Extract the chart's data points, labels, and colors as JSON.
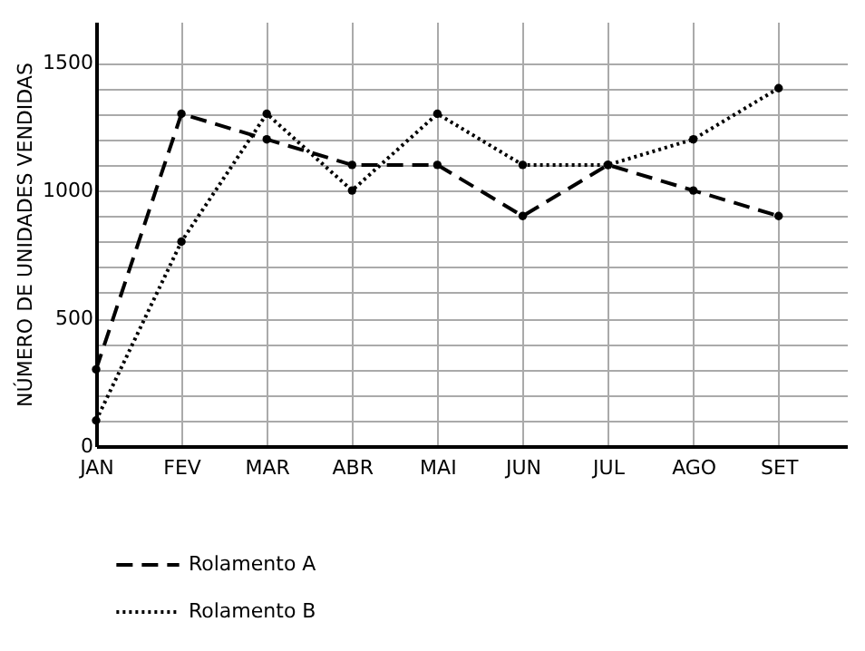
{
  "chart_data": {
    "type": "line",
    "ylabel": "NÚMERO DE UNIDADES VENDIDAS",
    "categories": [
      "JAN",
      "FEV",
      "MAR",
      "ABR",
      "MAI",
      "JUN",
      "JUL",
      "AGO",
      "SET"
    ],
    "series": [
      {
        "name": "Rolamento A",
        "color": "#000000",
        "line_style": "dashed",
        "values": [
          300,
          1300,
          1200,
          1100,
          1100,
          900,
          1100,
          1000,
          900
        ]
      },
      {
        "name": "Rolamento B",
        "color": "#000000",
        "line_style": "dotted",
        "values": [
          100,
          800,
          1300,
          1000,
          1300,
          1100,
          1100,
          1200,
          1400
        ]
      }
    ],
    "ylim": [
      0,
      1660
    ],
    "yticks": [
      0,
      {
        "value": 100,
        "label": null
      },
      {
        "value": 200,
        "label": null
      },
      {
        "value": 300,
        "label": null
      },
      {
        "value": 400,
        "label": null
      },
      500,
      {
        "value": 600,
        "label": null
      },
      {
        "value": 700,
        "label": null
      },
      {
        "value": 800,
        "label": null
      },
      {
        "value": 900,
        "label": null
      },
      1000,
      {
        "value": 1100,
        "label": null
      },
      {
        "value": 1200,
        "label": null
      },
      {
        "value": 1300,
        "label": null
      },
      {
        "value": 1400,
        "label": null
      },
      1500
    ],
    "grid": true,
    "legend": "bottom",
    "marker": "circle"
  }
}
